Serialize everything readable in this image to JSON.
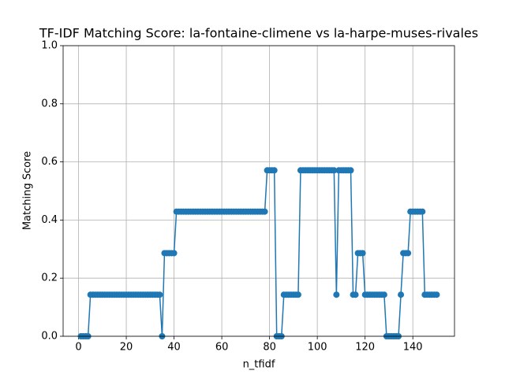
{
  "chart_data": {
    "type": "line",
    "title": "TF-IDF Matching Score: la-fontaine-climene vs la-harpe-muses-rivales",
    "xlabel": "n_tfidf",
    "ylabel": "Matching Score",
    "x": [
      1,
      2,
      3,
      4,
      5,
      6,
      7,
      8,
      9,
      10,
      11,
      12,
      13,
      14,
      15,
      16,
      17,
      18,
      19,
      20,
      21,
      22,
      23,
      24,
      25,
      26,
      27,
      28,
      29,
      30,
      31,
      32,
      33,
      34,
      35,
      36,
      37,
      38,
      39,
      40,
      41,
      42,
      43,
      44,
      45,
      46,
      47,
      48,
      49,
      50,
      51,
      52,
      53,
      54,
      55,
      56,
      57,
      58,
      59,
      60,
      61,
      62,
      63,
      64,
      65,
      66,
      67,
      68,
      69,
      70,
      71,
      72,
      73,
      74,
      75,
      76,
      77,
      78,
      79,
      80,
      81,
      82,
      83,
      84,
      85,
      86,
      87,
      88,
      89,
      90,
      91,
      92,
      93,
      94,
      95,
      96,
      97,
      98,
      99,
      100,
      101,
      102,
      103,
      104,
      105,
      106,
      107,
      108,
      109,
      110,
      111,
      112,
      113,
      114,
      115,
      116,
      117,
      118,
      119,
      120,
      121,
      122,
      123,
      124,
      125,
      126,
      127,
      128,
      129,
      130,
      131,
      132,
      133,
      134,
      135,
      136,
      137,
      138,
      139,
      140,
      141,
      142,
      143,
      144,
      145,
      146,
      147,
      148,
      149,
      150
    ],
    "series": [
      {
        "name": "Matching Score",
        "color": "#1f77b4",
        "values": [
          0,
          0,
          0,
          0,
          0.143,
          0.143,
          0.143,
          0.143,
          0.143,
          0.143,
          0.143,
          0.143,
          0.143,
          0.143,
          0.143,
          0.143,
          0.143,
          0.143,
          0.143,
          0.143,
          0.143,
          0.143,
          0.143,
          0.143,
          0.143,
          0.143,
          0.143,
          0.143,
          0.143,
          0.143,
          0.143,
          0.143,
          0.143,
          0.143,
          0,
          0.286,
          0.286,
          0.286,
          0.286,
          0.286,
          0.429,
          0.429,
          0.429,
          0.429,
          0.429,
          0.429,
          0.429,
          0.429,
          0.429,
          0.429,
          0.429,
          0.429,
          0.429,
          0.429,
          0.429,
          0.429,
          0.429,
          0.429,
          0.429,
          0.429,
          0.429,
          0.429,
          0.429,
          0.429,
          0.429,
          0.429,
          0.429,
          0.429,
          0.429,
          0.429,
          0.429,
          0.429,
          0.429,
          0.429,
          0.429,
          0.429,
          0.429,
          0.429,
          0.571,
          0.571,
          0.571,
          0.571,
          0,
          0,
          0,
          0.143,
          0.143,
          0.143,
          0.143,
          0.143,
          0.143,
          0.143,
          0.571,
          0.571,
          0.571,
          0.571,
          0.571,
          0.571,
          0.571,
          0.571,
          0.571,
          0.571,
          0.571,
          0.571,
          0.571,
          0.571,
          0.571,
          0.143,
          0.571,
          0.571,
          0.571,
          0.571,
          0.571,
          0.571,
          0.143,
          0.143,
          0.286,
          0.286,
          0.286,
          0.143,
          0.143,
          0.143,
          0.143,
          0.143,
          0.143,
          0.143,
          0.143,
          0.143,
          0,
          0,
          0,
          0,
          0,
          0,
          0.143,
          0.286,
          0.286,
          0.286,
          0.429,
          0.429,
          0.429,
          0.429,
          0.429,
          0.429,
          0.143,
          0.143,
          0.143,
          0.143,
          0.143,
          0.143
        ]
      }
    ],
    "xlim": [
      -6.45,
      157.45
    ],
    "ylim": [
      0,
      1
    ],
    "xticks": [
      0,
      20,
      40,
      60,
      80,
      100,
      120,
      140
    ],
    "yticks": [
      {
        "value": 0,
        "label": "0.0"
      },
      {
        "value": 0.2,
        "label": "0.2"
      },
      {
        "value": 0.4,
        "label": "0.4"
      },
      {
        "value": 0.6,
        "label": "0.6"
      },
      {
        "value": 0.8,
        "label": "0.8"
      },
      {
        "value": 1,
        "label": "1.0"
      }
    ],
    "grid": true
  }
}
